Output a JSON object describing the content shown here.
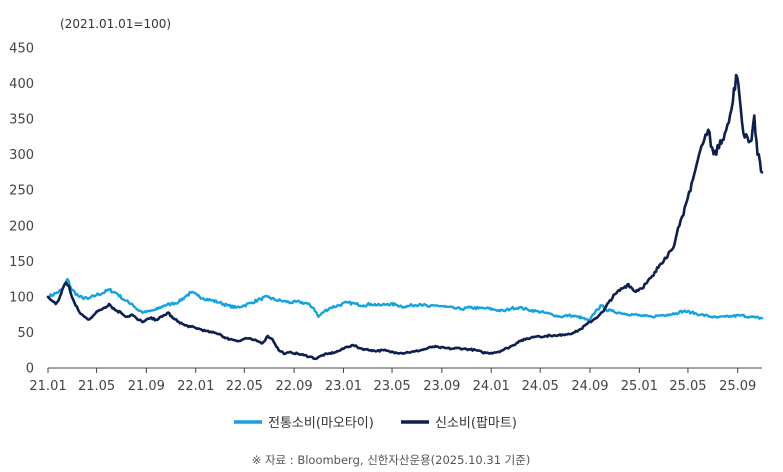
{
  "chart_data": {
    "type": "line",
    "unit_note": "(2021.01.01=100)",
    "source": "※ 자료 : Bloomberg, 신한자산운용(2025.10.31 기준)",
    "ylim": [
      0,
      450
    ],
    "yticks": [
      0,
      50,
      100,
      150,
      200,
      250,
      300,
      350,
      400,
      450
    ],
    "xlim": [
      "2021-01-01",
      "2025-10-31"
    ],
    "xticks": [
      {
        "date": "2021-01-01",
        "label": "21.01"
      },
      {
        "date": "2021-05-01",
        "label": "21.05"
      },
      {
        "date": "2021-09-01",
        "label": "21.09"
      },
      {
        "date": "2022-01-01",
        "label": "22.01"
      },
      {
        "date": "2022-05-01",
        "label": "22.05"
      },
      {
        "date": "2022-09-01",
        "label": "22.09"
      },
      {
        "date": "2023-01-01",
        "label": "23.01"
      },
      {
        "date": "2023-05-01",
        "label": "23.05"
      },
      {
        "date": "2023-09-01",
        "label": "23.09"
      },
      {
        "date": "2024-01-01",
        "label": "24.01"
      },
      {
        "date": "2024-05-01",
        "label": "24.05"
      },
      {
        "date": "2024-09-01",
        "label": "24.09"
      },
      {
        "date": "2025-01-01",
        "label": "25.01"
      },
      {
        "date": "2025-05-01",
        "label": "25.05"
      },
      {
        "date": "2025-09-01",
        "label": "25.09"
      }
    ],
    "grid": false,
    "legend_position": "bottom-center",
    "series": [
      {
        "name": "전통소비(마오타이)",
        "color": "#12a3e0",
        "points": [
          [
            "2021-01-01",
            100
          ],
          [
            "2021-01-20",
            105
          ],
          [
            "2021-02-05",
            110
          ],
          [
            "2021-02-18",
            125
          ],
          [
            "2021-03-01",
            110
          ],
          [
            "2021-03-20",
            100
          ],
          [
            "2021-04-10",
            97
          ],
          [
            "2021-05-01",
            103
          ],
          [
            "2021-05-15",
            105
          ],
          [
            "2021-06-01",
            110
          ],
          [
            "2021-06-20",
            105
          ],
          [
            "2021-07-10",
            95
          ],
          [
            "2021-07-28",
            90
          ],
          [
            "2021-08-10",
            82
          ],
          [
            "2021-08-25",
            78
          ],
          [
            "2021-09-10",
            80
          ],
          [
            "2021-09-25",
            82
          ],
          [
            "2021-10-15",
            88
          ],
          [
            "2021-11-01",
            90
          ],
          [
            "2021-11-20",
            93
          ],
          [
            "2021-12-05",
            100
          ],
          [
            "2021-12-20",
            106
          ],
          [
            "2022-01-05",
            102
          ],
          [
            "2022-01-20",
            98
          ],
          [
            "2022-02-10",
            95
          ],
          [
            "2022-03-01",
            92
          ],
          [
            "2022-03-20",
            88
          ],
          [
            "2022-04-10",
            85
          ],
          [
            "2022-05-01",
            88
          ],
          [
            "2022-05-20",
            92
          ],
          [
            "2022-06-10",
            97
          ],
          [
            "2022-06-28",
            100
          ],
          [
            "2022-07-15",
            96
          ],
          [
            "2022-08-05",
            94
          ],
          [
            "2022-08-25",
            92
          ],
          [
            "2022-09-15",
            93
          ],
          [
            "2022-10-05",
            90
          ],
          [
            "2022-10-20",
            84
          ],
          [
            "2022-10-31",
            72
          ],
          [
            "2022-11-15",
            80
          ],
          [
            "2022-12-01",
            85
          ],
          [
            "2022-12-20",
            88
          ],
          [
            "2023-01-10",
            92
          ],
          [
            "2023-02-01",
            90
          ],
          [
            "2023-02-20",
            88
          ],
          [
            "2023-03-10",
            90
          ],
          [
            "2023-04-01",
            88
          ],
          [
            "2023-04-20",
            90
          ],
          [
            "2023-05-10",
            89
          ],
          [
            "2023-06-01",
            86
          ],
          [
            "2023-06-20",
            88
          ],
          [
            "2023-07-10",
            90
          ],
          [
            "2023-08-01",
            86
          ],
          [
            "2023-08-20",
            88
          ],
          [
            "2023-09-10",
            86
          ],
          [
            "2023-10-01",
            84
          ],
          [
            "2023-10-20",
            83
          ],
          [
            "2023-11-10",
            85
          ],
          [
            "2023-12-01",
            84
          ],
          [
            "2023-12-20",
            84
          ],
          [
            "2024-01-10",
            82
          ],
          [
            "2024-02-01",
            80
          ],
          [
            "2024-02-20",
            84
          ],
          [
            "2024-03-10",
            85
          ],
          [
            "2024-04-01",
            82
          ],
          [
            "2024-04-20",
            80
          ],
          [
            "2024-05-10",
            78
          ],
          [
            "2024-06-01",
            75
          ],
          [
            "2024-06-20",
            72
          ],
          [
            "2024-07-10",
            74
          ],
          [
            "2024-08-01",
            72
          ],
          [
            "2024-08-15",
            70
          ],
          [
            "2024-08-30",
            66
          ],
          [
            "2024-09-15",
            80
          ],
          [
            "2024-09-30",
            88
          ],
          [
            "2024-10-10",
            82
          ],
          [
            "2024-10-25",
            80
          ],
          [
            "2024-11-10",
            78
          ],
          [
            "2024-12-01",
            76
          ],
          [
            "2024-12-20",
            75
          ],
          [
            "2025-01-10",
            73
          ],
          [
            "2025-02-01",
            72
          ],
          [
            "2025-02-20",
            74
          ],
          [
            "2025-03-10",
            75
          ],
          [
            "2025-04-01",
            77
          ],
          [
            "2025-04-20",
            80
          ],
          [
            "2025-05-10",
            78
          ],
          [
            "2025-06-01",
            75
          ],
          [
            "2025-06-20",
            73
          ],
          [
            "2025-07-10",
            71
          ],
          [
            "2025-08-01",
            72
          ],
          [
            "2025-08-20",
            73
          ],
          [
            "2025-09-10",
            74
          ],
          [
            "2025-09-30",
            72
          ],
          [
            "2025-10-15",
            71
          ],
          [
            "2025-10-31",
            70
          ]
        ]
      },
      {
        "name": "신소비(팝마트)",
        "color": "#0d1f4e",
        "points": [
          [
            "2021-01-01",
            100
          ],
          [
            "2021-01-10",
            95
          ],
          [
            "2021-01-20",
            90
          ],
          [
            "2021-01-28",
            96
          ],
          [
            "2021-02-05",
            110
          ],
          [
            "2021-02-15",
            120
          ],
          [
            "2021-02-22",
            115
          ],
          [
            "2021-03-01",
            100
          ],
          [
            "2021-03-10",
            88
          ],
          [
            "2021-03-20",
            78
          ],
          [
            "2021-04-01",
            72
          ],
          [
            "2021-04-10",
            68
          ],
          [
            "2021-04-25",
            75
          ],
          [
            "2021-05-05",
            80
          ],
          [
            "2021-05-20",
            85
          ],
          [
            "2021-06-01",
            90
          ],
          [
            "2021-06-15",
            82
          ],
          [
            "2021-06-30",
            78
          ],
          [
            "2021-07-15",
            72
          ],
          [
            "2021-07-28",
            75
          ],
          [
            "2021-08-10",
            68
          ],
          [
            "2021-08-25",
            65
          ],
          [
            "2021-09-10",
            70
          ],
          [
            "2021-09-25",
            68
          ],
          [
            "2021-10-10",
            72
          ],
          [
            "2021-10-25",
            78
          ],
          [
            "2021-11-05",
            70
          ],
          [
            "2021-11-20",
            65
          ],
          [
            "2021-12-05",
            60
          ],
          [
            "2021-12-20",
            58
          ],
          [
            "2022-01-10",
            55
          ],
          [
            "2022-01-25",
            52
          ],
          [
            "2022-02-10",
            50
          ],
          [
            "2022-03-01",
            48
          ],
          [
            "2022-03-15",
            42
          ],
          [
            "2022-04-01",
            40
          ],
          [
            "2022-04-20",
            38
          ],
          [
            "2022-05-05",
            42
          ],
          [
            "2022-05-20",
            40
          ],
          [
            "2022-06-01",
            38
          ],
          [
            "2022-06-15",
            35
          ],
          [
            "2022-06-28",
            45
          ],
          [
            "2022-07-10",
            40
          ],
          [
            "2022-07-25",
            25
          ],
          [
            "2022-08-10",
            20
          ],
          [
            "2022-08-25",
            22
          ],
          [
            "2022-09-10",
            20
          ],
          [
            "2022-09-25",
            18
          ],
          [
            "2022-10-10",
            16
          ],
          [
            "2022-10-25",
            13
          ],
          [
            "2022-11-10",
            18
          ],
          [
            "2022-11-25",
            20
          ],
          [
            "2022-12-10",
            22
          ],
          [
            "2022-12-25",
            25
          ],
          [
            "2023-01-10",
            30
          ],
          [
            "2023-01-25",
            32
          ],
          [
            "2023-02-10",
            28
          ],
          [
            "2023-02-25",
            26
          ],
          [
            "2023-03-10",
            25
          ],
          [
            "2023-03-25",
            24
          ],
          [
            "2023-04-10",
            25
          ],
          [
            "2023-04-25",
            23
          ],
          [
            "2023-05-10",
            22
          ],
          [
            "2023-05-25",
            21
          ],
          [
            "2023-06-10",
            22
          ],
          [
            "2023-06-25",
            23
          ],
          [
            "2023-07-10",
            25
          ],
          [
            "2023-07-25",
            27
          ],
          [
            "2023-08-10",
            30
          ],
          [
            "2023-08-25",
            29
          ],
          [
            "2023-09-10",
            28
          ],
          [
            "2023-09-25",
            27
          ],
          [
            "2023-10-10",
            28
          ],
          [
            "2023-10-25",
            27
          ],
          [
            "2023-11-10",
            26
          ],
          [
            "2023-11-25",
            25
          ],
          [
            "2023-12-10",
            22
          ],
          [
            "2023-12-25",
            21
          ],
          [
            "2024-01-10",
            22
          ],
          [
            "2024-01-25",
            24
          ],
          [
            "2024-02-10",
            28
          ],
          [
            "2024-02-25",
            32
          ],
          [
            "2024-03-10",
            38
          ],
          [
            "2024-03-25",
            40
          ],
          [
            "2024-04-10",
            43
          ],
          [
            "2024-04-25",
            45
          ],
          [
            "2024-05-10",
            44
          ],
          [
            "2024-05-25",
            46
          ],
          [
            "2024-06-10",
            45
          ],
          [
            "2024-06-25",
            47
          ],
          [
            "2024-07-10",
            48
          ],
          [
            "2024-07-25",
            50
          ],
          [
            "2024-08-10",
            55
          ],
          [
            "2024-08-25",
            62
          ],
          [
            "2024-09-10",
            68
          ],
          [
            "2024-09-25",
            75
          ],
          [
            "2024-10-05",
            80
          ],
          [
            "2024-10-20",
            95
          ],
          [
            "2024-11-05",
            105
          ],
          [
            "2024-11-20",
            112
          ],
          [
            "2024-12-05",
            118
          ],
          [
            "2024-12-20",
            108
          ],
          [
            "2025-01-05",
            112
          ],
          [
            "2025-01-20",
            120
          ],
          [
            "2025-02-05",
            130
          ],
          [
            "2025-02-20",
            145
          ],
          [
            "2025-03-05",
            155
          ],
          [
            "2025-03-20",
            165
          ],
          [
            "2025-03-31",
            180
          ],
          [
            "2025-04-10",
            200
          ],
          [
            "2025-04-20",
            215
          ],
          [
            "2025-05-01",
            240
          ],
          [
            "2025-05-10",
            260
          ],
          [
            "2025-05-20",
            280
          ],
          [
            "2025-05-31",
            305
          ],
          [
            "2025-06-10",
            320
          ],
          [
            "2025-06-20",
            335
          ],
          [
            "2025-06-30",
            310
          ],
          [
            "2025-07-10",
            300
          ],
          [
            "2025-07-20",
            320
          ],
          [
            "2025-07-31",
            330
          ],
          [
            "2025-08-10",
            345
          ],
          [
            "2025-08-20",
            375
          ],
          [
            "2025-08-28",
            412
          ],
          [
            "2025-09-05",
            385
          ],
          [
            "2025-09-15",
            330
          ],
          [
            "2025-09-25",
            325
          ],
          [
            "2025-10-05",
            320
          ],
          [
            "2025-10-12",
            355
          ],
          [
            "2025-10-20",
            300
          ],
          [
            "2025-10-26",
            290
          ],
          [
            "2025-10-31",
            275
          ]
        ]
      }
    ]
  }
}
